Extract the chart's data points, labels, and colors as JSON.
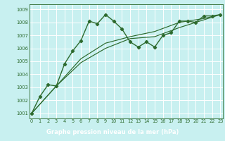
{
  "series": [
    {
      "x": [
        0,
        1,
        2,
        3,
        4,
        5,
        6,
        7,
        8,
        9,
        10,
        11,
        12,
        13,
        14,
        15,
        16,
        17,
        18,
        19,
        20,
        21,
        22,
        23
      ],
      "y": [
        1001.0,
        1002.3,
        1003.2,
        1003.1,
        1004.8,
        1005.8,
        1006.6,
        1008.1,
        1007.9,
        1008.6,
        1008.1,
        1007.5,
        1006.5,
        1006.1,
        1006.5,
        1006.1,
        1007.0,
        1007.2,
        1008.1,
        1008.1,
        1008.0,
        1008.5,
        1008.5,
        1008.6
      ],
      "color": "#2d6a2d",
      "marker": "D",
      "markersize": 2.2,
      "linewidth": 1.0
    },
    {
      "x": [
        0,
        3,
        6,
        9,
        12,
        15,
        18,
        21,
        23
      ],
      "y": [
        1001.0,
        1003.1,
        1005.2,
        1006.4,
        1006.9,
        1007.3,
        1008.0,
        1008.3,
        1008.6
      ],
      "color": "#2d6a2d",
      "marker": null,
      "markersize": 0,
      "linewidth": 0.85
    },
    {
      "x": [
        0,
        3,
        6,
        9,
        12,
        15,
        18,
        21,
        23
      ],
      "y": [
        1001.0,
        1003.1,
        1004.9,
        1006.0,
        1006.75,
        1006.9,
        1007.6,
        1008.2,
        1008.6
      ],
      "color": "#2d6a2d",
      "marker": null,
      "markersize": 0,
      "linewidth": 0.85
    }
  ],
  "xlim": [
    -0.3,
    23.3
  ],
  "ylim": [
    1000.6,
    1009.4
  ],
  "yticks": [
    1001,
    1002,
    1003,
    1004,
    1005,
    1006,
    1007,
    1008,
    1009
  ],
  "xticks": [
    0,
    1,
    2,
    3,
    4,
    5,
    6,
    7,
    8,
    9,
    10,
    11,
    12,
    13,
    14,
    15,
    16,
    17,
    18,
    19,
    20,
    21,
    22,
    23
  ],
  "xlabel": "Graphe pression niveau de la mer (hPa)",
  "background_color": "#c8f0f0",
  "plot_bg_color": "#c8f0f0",
  "footer_bg_color": "#3a7a3a",
  "grid_color": "#ffffff",
  "line_color": "#2d6a2d",
  "label_color": "#2d6a2d",
  "xlabel_color": "#ffffff",
  "tick_fontsize": 4.8,
  "xlabel_fontsize": 6.0
}
